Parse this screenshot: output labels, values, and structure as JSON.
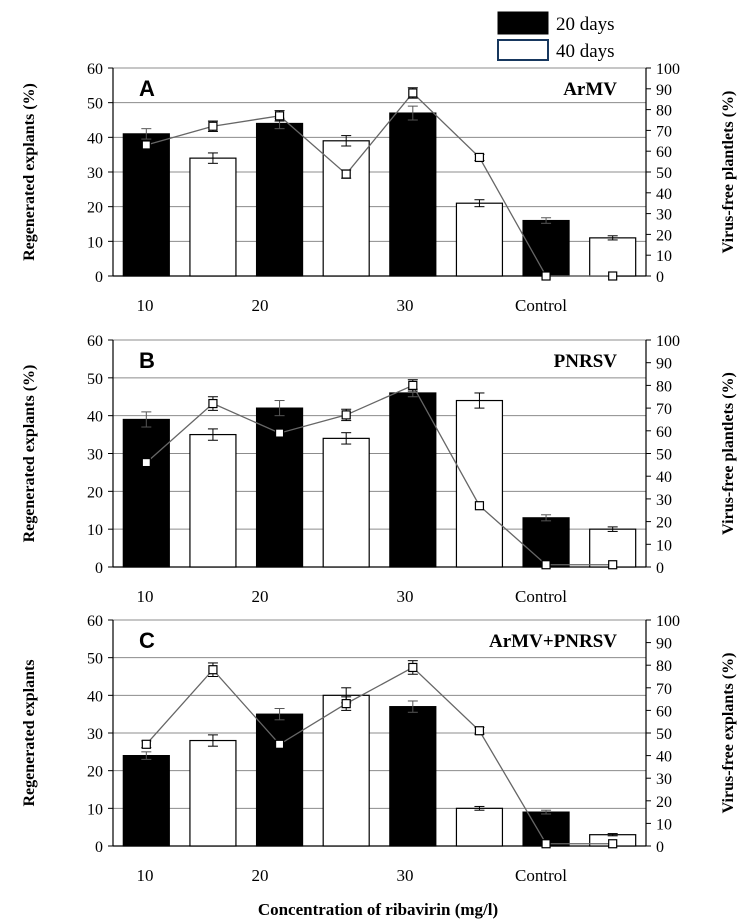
{
  "legend": [
    {
      "label": "20 days",
      "fill": "#000000"
    },
    {
      "label": "40 days",
      "fill": "#ffffff"
    }
  ],
  "x_axis_title": "Concentration of ribavirin (mg/l)",
  "chart_data": [
    {
      "type": "bar",
      "panel": "A",
      "virus": "ArMV",
      "ylabel": "Regenerated explants (%)",
      "y2label": "Virus-free plantlets (%)",
      "ylim": [
        0,
        60
      ],
      "y2lim": [
        0,
        100
      ],
      "yticks": [
        "0",
        "10",
        "20",
        "30",
        "40",
        "50",
        "60"
      ],
      "y2ticks": [
        "0",
        "10",
        "20",
        "30",
        "40",
        "50",
        "60",
        "70",
        "80",
        "90",
        "100"
      ],
      "categories": [
        "10",
        "20",
        "30",
        "Control"
      ],
      "bars": [
        {
          "concentration": "10",
          "period": "20 days",
          "value": 41,
          "error": 1.5
        },
        {
          "concentration": "10",
          "period": "40 days",
          "value": 34,
          "error": 1.5
        },
        {
          "concentration": "20",
          "period": "20 days",
          "value": 44,
          "error": 1.5
        },
        {
          "concentration": "20",
          "period": "40 days",
          "value": 39,
          "error": 1.5
        },
        {
          "concentration": "30",
          "period": "20 days",
          "value": 47,
          "error": 2
        },
        {
          "concentration": "30",
          "period": "40 days",
          "value": 21,
          "error": 1
        },
        {
          "concentration": "Control",
          "period": "20 days",
          "value": 16,
          "error": 0.8
        },
        {
          "concentration": "Control",
          "period": "40 days",
          "value": 11,
          "error": 0.6
        }
      ],
      "virus_free": [
        63,
        72,
        77,
        49,
        88,
        57,
        0,
        0
      ],
      "virus_free_error": [
        0,
        2.5,
        2.5,
        2,
        2.5,
        1.5,
        0,
        0
      ]
    },
    {
      "type": "bar",
      "panel": "B",
      "virus": "PNRSV",
      "ylabel": "Regenerated explants (%)",
      "y2label": "Virus-free plantlets (%)",
      "ylim": [
        0,
        60
      ],
      "y2lim": [
        0,
        100
      ],
      "yticks": [
        "0",
        "10",
        "20",
        "30",
        "40",
        "50",
        "60"
      ],
      "y2ticks": [
        "0",
        "10",
        "20",
        "30",
        "40",
        "50",
        "60",
        "70",
        "80",
        "90",
        "100"
      ],
      "categories": [
        "10",
        "20",
        "30",
        "Control"
      ],
      "bars": [
        {
          "concentration": "10",
          "period": "20 days",
          "value": 39,
          "error": 2
        },
        {
          "concentration": "10",
          "period": "40 days",
          "value": 35,
          "error": 1.5
        },
        {
          "concentration": "20",
          "period": "20 days",
          "value": 42,
          "error": 2
        },
        {
          "concentration": "20",
          "period": "40 days",
          "value": 34,
          "error": 1.5
        },
        {
          "concentration": "30",
          "period": "20 days",
          "value": 46,
          "error": 1
        },
        {
          "concentration": "30",
          "period": "40 days",
          "value": 44,
          "error": 2
        },
        {
          "concentration": "Control",
          "period": "20 days",
          "value": 13,
          "error": 0.8
        },
        {
          "concentration": "Control",
          "period": "40 days",
          "value": 10,
          "error": 0.6
        }
      ],
      "virus_free": [
        46,
        72,
        59,
        67,
        80,
        27,
        1,
        1
      ],
      "virus_free_error": [
        0,
        3,
        0,
        2.5,
        2.5,
        0,
        0,
        0
      ]
    },
    {
      "type": "bar",
      "panel": "C",
      "virus": "ArMV+PNRSV",
      "ylabel": "Regenerated explants",
      "y2label": "Virus-free explants (%)",
      "ylim": [
        0,
        60
      ],
      "y2lim": [
        0,
        100
      ],
      "yticks": [
        "0",
        "10",
        "20",
        "30",
        "40",
        "50",
        "60"
      ],
      "y2ticks": [
        "0",
        "10",
        "20",
        "30",
        "40",
        "50",
        "60",
        "70",
        "80",
        "90",
        "100"
      ],
      "categories": [
        "10",
        "20",
        "30",
        "Control"
      ],
      "bars": [
        {
          "concentration": "10",
          "period": "20 days",
          "value": 24,
          "error": 1
        },
        {
          "concentration": "10",
          "period": "40 days",
          "value": 28,
          "error": 1.5
        },
        {
          "concentration": "20",
          "period": "20 days",
          "value": 35,
          "error": 1.5
        },
        {
          "concentration": "20",
          "period": "40 days",
          "value": 40,
          "error": 2
        },
        {
          "concentration": "30",
          "period": "20 days",
          "value": 37,
          "error": 1.5
        },
        {
          "concentration": "30",
          "period": "40 days",
          "value": 10,
          "error": 0.5
        },
        {
          "concentration": "Control",
          "period": "20 days",
          "value": 9,
          "error": 0.5
        },
        {
          "concentration": "Control",
          "period": "40 days",
          "value": 3,
          "error": 0.3
        }
      ],
      "virus_free": [
        45,
        78,
        45,
        63,
        79,
        51,
        1,
        1
      ],
      "virus_free_error": [
        1.5,
        3,
        0,
        3,
        3,
        1.5,
        0,
        0
      ]
    }
  ]
}
